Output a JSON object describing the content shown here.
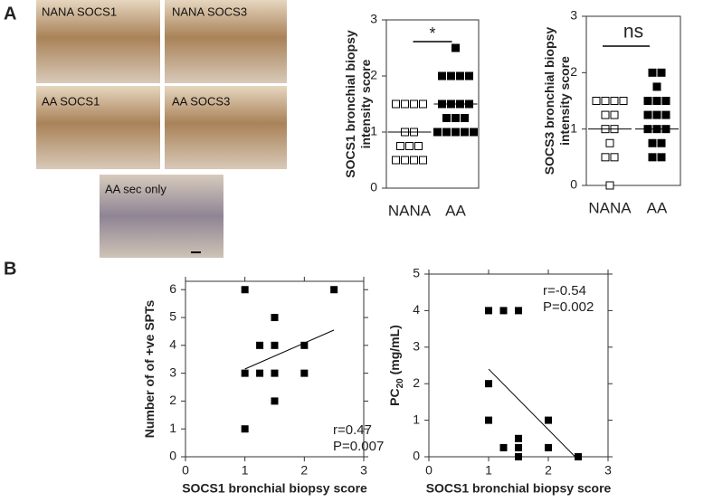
{
  "figure": {
    "panel_labels": [
      "A",
      "B"
    ],
    "micrographs": [
      "NANA SOCS1",
      "NANA SOCS3",
      "AA SOCS1",
      "AA SOCS3",
      "AA sec only"
    ]
  },
  "chart_data": [
    {
      "type": "dot",
      "categories": [
        "NANA",
        "AA"
      ],
      "ylabel": [
        "SOCS1 bronchial biopsy",
        "intensity score"
      ],
      "ylim": [
        0,
        3
      ],
      "yticks": [
        0,
        1,
        2,
        3
      ],
      "groups": [
        {
          "marker": "open",
          "values": [
            1.5,
            1.5,
            1.5,
            1.5,
            1,
            1,
            0.75,
            0.75,
            0.75,
            0.5,
            0.5,
            0.5,
            0.5
          ],
          "median": 1
        },
        {
          "marker": "filled",
          "values": [
            2.5,
            2,
            2,
            2,
            2,
            1.5,
            1.5,
            1.5,
            1.5,
            1.25,
            1.25,
            1.25,
            1,
            1,
            1,
            1,
            1
          ],
          "median": 1.5
        }
      ],
      "annotation": "*"
    },
    {
      "type": "dot",
      "categories": [
        "NANA",
        "AA"
      ],
      "ylabel": [
        "SOCS3 bronchial biopsy",
        "intensity score"
      ],
      "ylim": [
        0,
        3
      ],
      "yticks": [
        0,
        1,
        2,
        3
      ],
      "groups": [
        {
          "marker": "open",
          "values": [
            1.5,
            1.5,
            1.5,
            1.5,
            1.25,
            1.25,
            1,
            1,
            0.75,
            0.5,
            0.5,
            0
          ],
          "median": 1
        },
        {
          "marker": "filled",
          "values": [
            2,
            2,
            1.75,
            1.5,
            1.5,
            1.5,
            1.25,
            1.25,
            1.25,
            1,
            1,
            1,
            0.75,
            0.75,
            0.5,
            0.5
          ],
          "median": 1
        }
      ],
      "annotation": "ns"
    },
    {
      "type": "scatter",
      "xlabel": "SOCS1 bronchial biopsy score",
      "ylabel": [
        "Number of of +ve SPTs"
      ],
      "xlim": [
        0,
        3
      ],
      "ylim": [
        0,
        6.3
      ],
      "xticks": [
        0,
        1,
        2,
        3
      ],
      "yticks": [
        0,
        1,
        2,
        3,
        4,
        5,
        6
      ],
      "x": [
        1,
        1,
        1,
        1.25,
        1.25,
        1.5,
        1.5,
        1.5,
        1.5,
        2,
        2,
        2.5
      ],
      "y": [
        6,
        3,
        1,
        4,
        3,
        5,
        4,
        3,
        2,
        4,
        3,
        6
      ],
      "fit": {
        "x": [
          1,
          2.5
        ],
        "y": [
          3.15,
          4.55
        ]
      },
      "annotations": [
        "r=0.47",
        "P=0.007"
      ],
      "color": "#000000"
    },
    {
      "type": "scatter",
      "xlabel": "SOCS1 bronchial biopsy score",
      "ylabel": [
        "PC",
        "20",
        " (mg/mL)"
      ],
      "xlim": [
        0,
        3
      ],
      "ylim": [
        0,
        5
      ],
      "xticks": [
        0,
        1,
        2,
        3
      ],
      "yticks": [
        0,
        1,
        2,
        3,
        4,
        5
      ],
      "x": [
        1,
        1.25,
        1.5,
        1,
        1,
        1.25,
        1.5,
        1.5,
        1.5,
        2,
        2,
        2.5
      ],
      "y": [
        4,
        4,
        4,
        2,
        1,
        0.25,
        0.5,
        0.25,
        0,
        1,
        0.25,
        0
      ],
      "fit": {
        "x": [
          1,
          2.45
        ],
        "y": [
          2.4,
          0
        ]
      },
      "annotations": [
        "r=-0.54",
        "P=0.002"
      ],
      "color": "#000000"
    }
  ]
}
